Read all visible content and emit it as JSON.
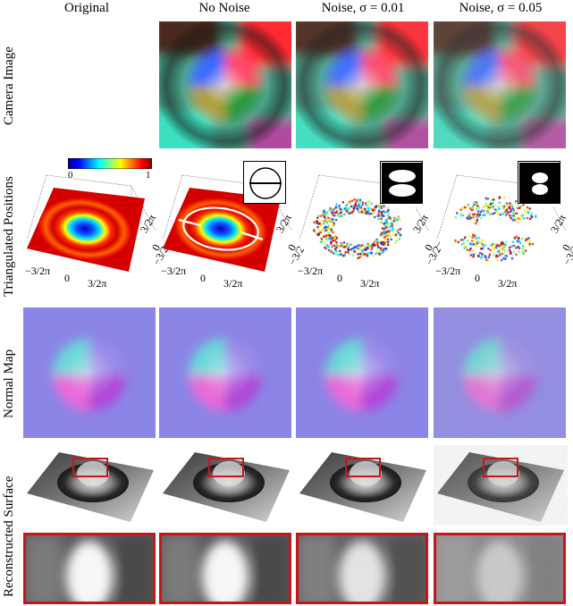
{
  "columns": [
    {
      "label": "Original"
    },
    {
      "label": "No Noise"
    },
    {
      "label": "Noise, σ = 0.01"
    },
    {
      "label": "Noise, σ = 0.05"
    }
  ],
  "rows": [
    {
      "label": "Camera Image"
    },
    {
      "label": "Triangulated Positions"
    },
    {
      "label": "Normal Map"
    },
    {
      "label": "Reconstructed Surface"
    }
  ],
  "colorbar": {
    "min": "0",
    "max": "1"
  },
  "axis_ticks": {
    "neg": "−3/2π",
    "zero": "0",
    "pos": "3/2π"
  },
  "colors": {
    "zoom_border": "#c8151b"
  }
}
